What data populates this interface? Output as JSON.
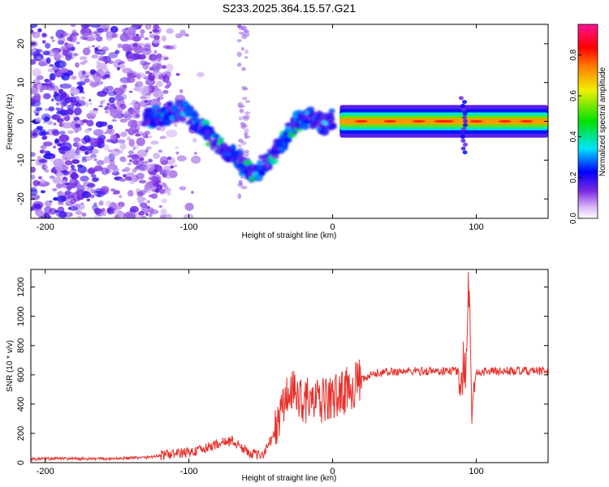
{
  "figure_title": "S233.2025.364.15.57.G21",
  "colors": {
    "snr_line": "#e8302a",
    "frame": "#000000",
    "colormap": [
      "#ffffff",
      "#7b2be0",
      "#0000ff",
      "#00e5ff",
      "#00e000",
      "#f0f000",
      "#ff8000",
      "#ff0000",
      "#ff1493"
    ]
  },
  "chart_data": [
    {
      "type": "heatmap",
      "title": "S233.2025.364.15.57.G21",
      "xlabel": "Height of straight line (km)",
      "ylabel": "Frequency (Hz)",
      "xlim": [
        -210,
        150
      ],
      "ylim": [
        -25,
        25
      ],
      "xticks": [
        -200,
        -100,
        0,
        100
      ],
      "xtick_labels": [
        "-200",
        "-100",
        "0",
        "100"
      ],
      "yticks": [
        -20,
        -10,
        0,
        10,
        20
      ],
      "ytick_labels": [
        "-20",
        "-10",
        "0",
        "10",
        "20"
      ],
      "ridge_x": [
        -125,
        -115,
        -105,
        -95,
        -85,
        -75,
        -65,
        -55,
        -45,
        -35,
        -25,
        -15,
        -5,
        0,
        10,
        30,
        60,
        90,
        100,
        120,
        150
      ],
      "ridge_y": [
        1,
        2,
        3,
        0,
        -4,
        -7,
        -10,
        -14,
        -10,
        -5,
        0,
        1,
        -1,
        1,
        0,
        0,
        0,
        0,
        0,
        0,
        0
      ],
      "colorbar": {
        "label": "Normalized spectral amplitude",
        "range": [
          0,
          0.95
        ],
        "ticks": [
          0.0,
          0.2,
          0.4,
          0.6,
          0.8
        ],
        "tick_labels": [
          "0.0",
          "0.2",
          "0.4",
          "0.6",
          "0.8"
        ]
      }
    },
    {
      "type": "line",
      "xlabel": "Height of straight line (km)",
      "ylabel": "SNR (10 * v/v)",
      "xlim": [
        -210,
        150
      ],
      "ylim": [
        0,
        1320
      ],
      "xticks": [
        -200,
        -100,
        0,
        100
      ],
      "xtick_labels": [
        "-200",
        "-100",
        "0",
        "100"
      ],
      "yticks": [
        0,
        200,
        400,
        600,
        800,
        1000,
        1200
      ],
      "ytick_labels": [
        "0",
        "200",
        "400",
        "600",
        "800",
        "1000",
        "1200"
      ],
      "x": [
        -210,
        -190,
        -170,
        -150,
        -130,
        -115,
        -100,
        -90,
        -80,
        -70,
        -60,
        -50,
        -40,
        -35,
        -30,
        -25,
        -20,
        -15,
        -10,
        -5,
        0,
        10,
        20,
        30,
        40,
        50,
        60,
        70,
        80,
        85,
        90,
        93,
        95,
        97,
        100,
        110,
        120,
        130,
        140,
        150
      ],
      "values": [
        25,
        28,
        25,
        28,
        35,
        55,
        70,
        90,
        130,
        150,
        80,
        40,
        200,
        380,
        480,
        460,
        430,
        420,
        410,
        430,
        440,
        500,
        560,
        610,
        620,
        625,
        625,
        625,
        625,
        630,
        620,
        700,
        1300,
        300,
        620,
        625,
        625,
        625,
        625,
        625
      ]
    }
  ]
}
